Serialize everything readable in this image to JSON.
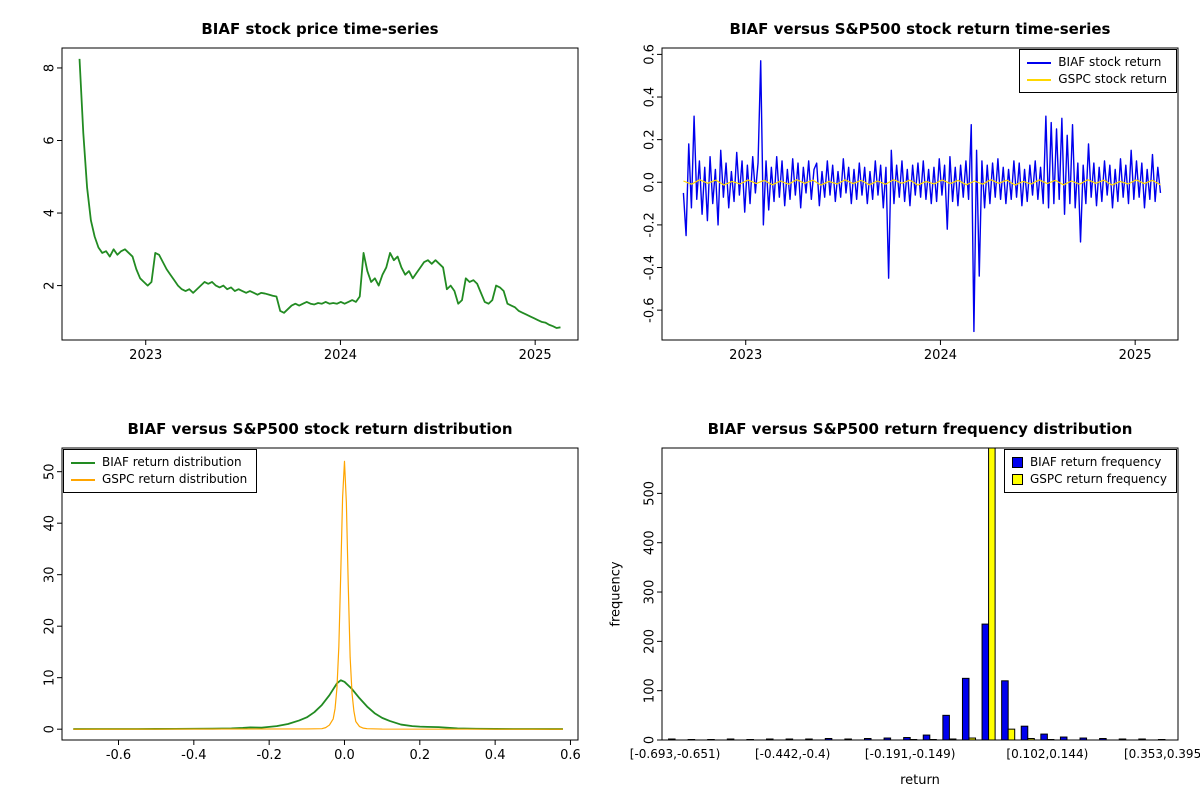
{
  "chart_data": [
    {
      "id": "price",
      "type": "line",
      "title": "BIAF stock price time-series",
      "xlabel": "",
      "ylabel": "",
      "xlim": [
        2022.57,
        2025.22
      ],
      "ylim": [
        0.5,
        8.55
      ],
      "xtick_vals": [
        2023,
        2024,
        2025
      ],
      "xtick_labels": [
        "2023",
        "2024",
        "2025"
      ],
      "ytick_vals": [
        2,
        4,
        6,
        8
      ],
      "ytick_labels": [
        "2",
        "4",
        "6",
        "8"
      ],
      "series": [
        {
          "name": "BIAF stock price",
          "color": "#228B22",
          "lwd": 1.8,
          "xrange": [
            2022.66,
            2025.13
          ],
          "y": [
            8.25,
            6.2,
            4.7,
            3.8,
            3.35,
            3.05,
            2.9,
            2.95,
            2.8,
            3.0,
            2.85,
            2.95,
            3.0,
            2.9,
            2.8,
            2.45,
            2.2,
            2.1,
            2.0,
            2.1,
            2.9,
            2.85,
            2.65,
            2.45,
            2.3,
            2.15,
            2.0,
            1.9,
            1.85,
            1.9,
            1.8,
            1.9,
            2.0,
            2.1,
            2.05,
            2.1,
            2.0,
            1.95,
            2.0,
            1.9,
            1.95,
            1.85,
            1.9,
            1.85,
            1.8,
            1.85,
            1.8,
            1.75,
            1.8,
            1.78,
            1.75,
            1.72,
            1.7,
            1.3,
            1.25,
            1.35,
            1.45,
            1.5,
            1.45,
            1.5,
            1.55,
            1.5,
            1.48,
            1.52,
            1.5,
            1.55,
            1.5,
            1.52,
            1.5,
            1.55,
            1.5,
            1.55,
            1.6,
            1.55,
            1.7,
            2.9,
            2.4,
            2.1,
            2.2,
            2.0,
            2.3,
            2.5,
            2.9,
            2.7,
            2.8,
            2.5,
            2.3,
            2.4,
            2.2,
            2.35,
            2.5,
            2.65,
            2.7,
            2.6,
            2.7,
            2.6,
            2.5,
            1.9,
            2.0,
            1.85,
            1.5,
            1.6,
            2.2,
            2.1,
            2.15,
            2.05,
            1.8,
            1.55,
            1.5,
            1.6,
            2.0,
            1.95,
            1.85,
            1.5,
            1.45,
            1.4,
            1.3,
            1.25,
            1.2,
            1.15,
            1.1,
            1.05,
            1.0,
            0.98,
            0.92,
            0.88,
            0.83,
            0.85
          ]
        }
      ]
    },
    {
      "id": "returns",
      "type": "line",
      "title": "BIAF versus S&P500 stock return time-series",
      "xlabel": "",
      "ylabel": "",
      "xlim": [
        2022.57,
        2025.22
      ],
      "ylim": [
        -0.74,
        0.63
      ],
      "xtick_vals": [
        2023,
        2024,
        2025
      ],
      "xtick_labels": [
        "2023",
        "2024",
        "2025"
      ],
      "ytick_vals": [
        -0.6,
        -0.4,
        -0.2,
        0,
        0.2,
        0.4,
        0.6
      ],
      "ytick_labels": [
        "-0.6",
        "-0.4",
        "-0.2",
        "0.0",
        "0.2",
        "0.4",
        "0.6"
      ],
      "legend": {
        "position": "top-right",
        "items": [
          {
            "label": "BIAF stock return",
            "color": "#0000EE",
            "sample": "line"
          },
          {
            "label": "GSPC stock return",
            "color": "#FFD700",
            "sample": "line"
          }
        ]
      },
      "series": [
        {
          "name": "BIAF stock return",
          "color": "#0000EE",
          "lwd": 1.4,
          "xrange": [
            2022.68,
            2025.13
          ],
          "y": [
            -0.05,
            -0.25,
            0.18,
            -0.12,
            0.31,
            -0.08,
            0.1,
            -0.15,
            0.07,
            -0.18,
            0.12,
            -0.1,
            0.06,
            -0.2,
            0.15,
            -0.07,
            0.09,
            -0.12,
            0.05,
            -0.09,
            0.14,
            -0.06,
            0.1,
            -0.14,
            0.08,
            -0.1,
            0.12,
            -0.05,
            0.09,
            0.57,
            -0.2,
            0.1,
            -0.13,
            0.07,
            -0.09,
            0.12,
            -0.07,
            0.1,
            -0.11,
            0.06,
            -0.08,
            0.11,
            -0.06,
            0.09,
            -0.12,
            0.07,
            -0.05,
            0.1,
            -0.08,
            0.06,
            0.09,
            -0.11,
            0.05,
            -0.07,
            0.1,
            -0.06,
            0.08,
            -0.09,
            0.05,
            -0.07,
            0.11,
            -0.05,
            0.07,
            -0.1,
            0.06,
            -0.08,
            0.09,
            -0.06,
            0.07,
            -0.1,
            0.05,
            -0.08,
            0.1,
            -0.06,
            0.08,
            -0.12,
            0.07,
            -0.45,
            0.15,
            -0.1,
            0.08,
            -0.07,
            0.1,
            -0.09,
            0.06,
            -0.11,
            0.08,
            -0.06,
            0.09,
            -0.07,
            0.1,
            -0.08,
            0.06,
            -0.1,
            0.07,
            -0.09,
            0.11,
            -0.06,
            0.08,
            -0.22,
            0.12,
            -0.09,
            0.07,
            -0.11,
            0.08,
            -0.07,
            0.1,
            -0.08,
            0.27,
            -0.7,
            0.15,
            -0.44,
            0.1,
            -0.12,
            0.08,
            -0.1,
            0.09,
            -0.07,
            0.11,
            -0.08,
            0.07,
            -0.1,
            0.06,
            -0.08,
            0.1,
            -0.07,
            0.09,
            -0.11,
            0.06,
            -0.09,
            0.08,
            -0.06,
            0.1,
            -0.08,
            0.07,
            -0.1,
            0.31,
            -0.12,
            0.28,
            -0.1,
            0.25,
            -0.08,
            0.3,
            -0.15,
            0.22,
            -0.1,
            0.27,
            -0.12,
            0.09,
            -0.28,
            0.08,
            -0.1,
            0.18,
            -0.07,
            0.09,
            -0.11,
            0.07,
            -0.09,
            0.1,
            -0.06,
            0.08,
            -0.12,
            0.06,
            -0.09,
            0.11,
            -0.07,
            0.08,
            -0.1,
            0.15,
            -0.08,
            0.1,
            -0.07,
            0.09,
            -0.12,
            0.06,
            -0.08,
            0.13,
            -0.09,
            0.07,
            -0.05
          ]
        },
        {
          "name": "GSPC stock return",
          "color": "#FFD700",
          "lwd": 1.2,
          "xrange": [
            2022.68,
            2025.13
          ],
          "y": [
            0.006,
            -0.009,
            0.012,
            -0.005,
            0.01,
            -0.013,
            0.004,
            -0.008,
            0.011,
            -0.006,
            0.009,
            -0.012,
            0.006,
            -0.009,
            0.012,
            -0.005,
            0.01,
            -0.013,
            0.004,
            -0.008,
            0.011,
            -0.006,
            0.009,
            -0.012,
            0.006,
            -0.009,
            0.012,
            -0.005,
            0.01,
            -0.013,
            0.004,
            -0.008,
            0.011,
            -0.006,
            0.009,
            -0.012,
            0.006,
            -0.009,
            0.012,
            -0.005,
            0.01,
            -0.013,
            0.004,
            -0.008,
            0.011,
            -0.006,
            0.009,
            -0.012,
            0.006,
            -0.009,
            0.012,
            -0.005,
            0.01,
            -0.013,
            0.004,
            -0.008,
            0.011,
            -0.006,
            0.009,
            -0.012
          ]
        }
      ]
    },
    {
      "id": "density",
      "type": "line",
      "title": "BIAF versus S&P500 stock return distribution",
      "xlabel": "",
      "ylabel": "",
      "xlim": [
        -0.75,
        0.62
      ],
      "ylim": [
        -2.1,
        54.6
      ],
      "xtick_vals": [
        -0.6,
        -0.4,
        -0.2,
        0,
        0.2,
        0.4,
        0.6
      ],
      "xtick_labels": [
        "-0.6",
        "-0.4",
        "-0.2",
        "0.0",
        "0.2",
        "0.4",
        "0.6"
      ],
      "ytick_vals": [
        0,
        10,
        20,
        30,
        40,
        50
      ],
      "ytick_labels": [
        "0",
        "10",
        "20",
        "30",
        "40",
        "50"
      ],
      "legend": {
        "position": "top-left",
        "items": [
          {
            "label": "BIAF return distribution",
            "color": "#228B22",
            "sample": "line"
          },
          {
            "label": "GSPC return distribution",
            "color": "#FFA500",
            "sample": "line"
          }
        ]
      },
      "series": [
        {
          "name": "BIAF return distribution",
          "color": "#228B22",
          "lwd": 1.8,
          "x": [
            -0.72,
            -0.65,
            -0.6,
            -0.55,
            -0.5,
            -0.45,
            -0.4,
            -0.35,
            -0.3,
            -0.27,
            -0.25,
            -0.22,
            -0.2,
            -0.18,
            -0.15,
            -0.12,
            -0.1,
            -0.08,
            -0.06,
            -0.04,
            -0.02,
            -0.01,
            0,
            0.02,
            0.04,
            0.06,
            0.08,
            0.1,
            0.12,
            0.15,
            0.18,
            0.2,
            0.22,
            0.25,
            0.28,
            0.3,
            0.35,
            0.4,
            0.45,
            0.5,
            0.55,
            0.58
          ],
          "y": [
            0.02,
            0.03,
            0.03,
            0.04,
            0.05,
            0.06,
            0.08,
            0.1,
            0.15,
            0.25,
            0.35,
            0.3,
            0.45,
            0.6,
            1.0,
            1.7,
            2.3,
            3.3,
            4.7,
            6.6,
            8.9,
            9.5,
            9.2,
            7.8,
            6.0,
            4.4,
            3.1,
            2.2,
            1.6,
            0.9,
            0.6,
            0.5,
            0.45,
            0.4,
            0.25,
            0.15,
            0.08,
            0.05,
            0.04,
            0.03,
            0.02,
            0.02
          ]
        },
        {
          "name": "GSPC return distribution",
          "color": "#FFA500",
          "lwd": 1.2,
          "x": [
            -0.72,
            -0.1,
            -0.06,
            -0.05,
            -0.04,
            -0.03,
            -0.025,
            -0.02,
            -0.015,
            -0.01,
            -0.005,
            0,
            0.005,
            0.01,
            0.015,
            0.02,
            0.025,
            0.03,
            0.04,
            0.05,
            0.06,
            0.1,
            0.58
          ],
          "y": [
            0,
            0.05,
            0.1,
            0.3,
            0.8,
            2,
            4,
            8,
            16,
            30,
            45,
            52,
            44,
            28,
            14,
            7,
            3.5,
            1.5,
            0.5,
            0.2,
            0.1,
            0.02,
            0
          ]
        }
      ]
    },
    {
      "id": "histogram",
      "type": "bar",
      "title": "BIAF versus S&P500 return frequency distribution",
      "xlabel": "return",
      "ylabel": "frequency",
      "ylim": [
        0,
        592
      ],
      "ytick_vals": [
        0,
        100,
        200,
        300,
        400,
        500
      ],
      "ytick_labels": [
        "0",
        "100",
        "200",
        "300",
        "400",
        "500"
      ],
      "bins": 26,
      "xtick_bins": [
        0,
        6,
        12,
        19,
        25
      ],
      "xtick_labels": [
        "[-0.693,-0.651)",
        "[-0.442,-0.4)",
        "[-0.191,-0.149)",
        "[0.102,0.144)",
        "[0.353,0.395)"
      ],
      "legend": {
        "position": "top-right",
        "items": [
          {
            "label": "BIAF return frequency",
            "color": "#0000EE",
            "sample": "box"
          },
          {
            "label": "GSPC return frequency",
            "color": "#FFFF00",
            "sample": "box"
          }
        ]
      },
      "series": [
        {
          "name": "BIAF return frequency",
          "color": "#0000EE",
          "values": [
            2,
            1,
            1,
            2,
            1,
            2,
            2,
            2,
            3,
            2,
            3,
            4,
            5,
            10,
            50,
            125,
            235,
            120,
            28,
            12,
            6,
            4,
            3,
            2,
            2,
            1
          ]
        },
        {
          "name": "GSPC return frequency",
          "color": "#FFFF00",
          "values": [
            0,
            0,
            0,
            0,
            0,
            0,
            0,
            0,
            0,
            0,
            0,
            0,
            1,
            1,
            2,
            4,
            600,
            22,
            3,
            1,
            0,
            0,
            0,
            0,
            0,
            0
          ]
        }
      ]
    }
  ]
}
